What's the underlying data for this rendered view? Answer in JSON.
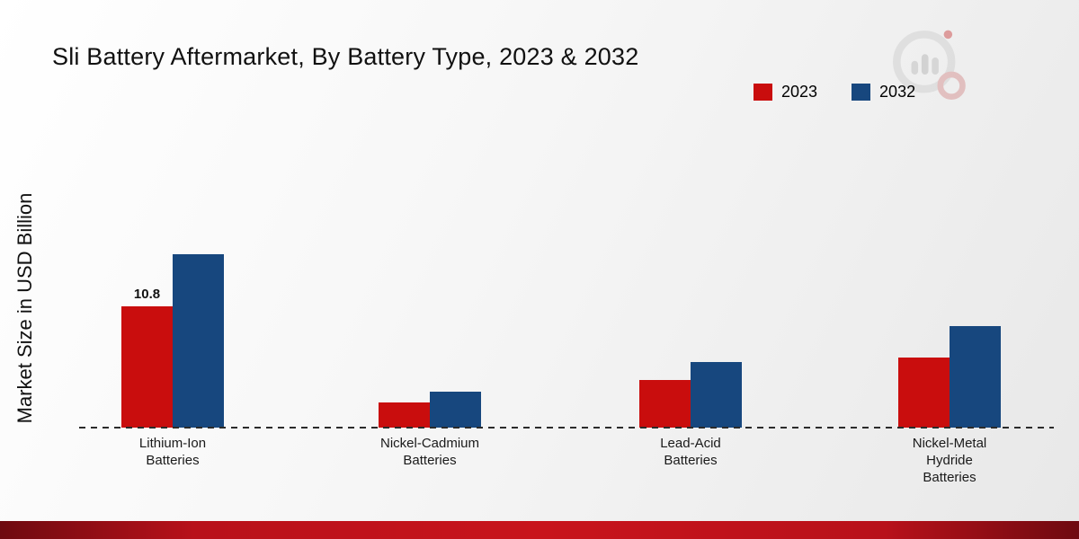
{
  "title": "Sli Battery Aftermarket, By Battery Type, 2023 & 2032",
  "y_axis_label": "Market Size in USD Billion",
  "legend": {
    "items": [
      {
        "label": "2023",
        "color": "#c90d0d"
      },
      {
        "label": "2032",
        "color": "#17477e"
      }
    ]
  },
  "colors": {
    "series_2023": "#c90d0d",
    "series_2032": "#17477e",
    "footer_accent": "#b8111a"
  },
  "chart_data": {
    "type": "bar",
    "title": "Sli Battery Aftermarket, By Battery Type, 2023 & 2032",
    "categories": [
      "Lithium-Ion Batteries",
      "Nickel-Cadmium Batteries",
      "Lead-Acid Batteries",
      "Nickel-Metal Hydride Batteries"
    ],
    "category_label_lines": [
      [
        "Lithium-Ion",
        "Batteries"
      ],
      [
        "Nickel-Cadmium",
        "Batteries"
      ],
      [
        "Lead-Acid",
        "Batteries"
      ],
      [
        "Nickel-Metal",
        "Hydride",
        "Batteries"
      ]
    ],
    "series": [
      {
        "name": "2023",
        "color": "#c90d0d",
        "values": [
          10.8,
          2.2,
          4.2,
          6.2
        ]
      },
      {
        "name": "2032",
        "color": "#17477e",
        "values": [
          15.4,
          3.2,
          5.8,
          9.0
        ]
      }
    ],
    "xlabel": "",
    "ylabel": "Market Size in USD Billion",
    "ylim": [
      0,
      16
    ],
    "grid": false,
    "legend_position": "top-right",
    "baseline_style": "dashed",
    "shown_data_labels": [
      {
        "series": "2023",
        "category": "Lithium-Ion Batteries",
        "text": "10.8"
      }
    ]
  }
}
